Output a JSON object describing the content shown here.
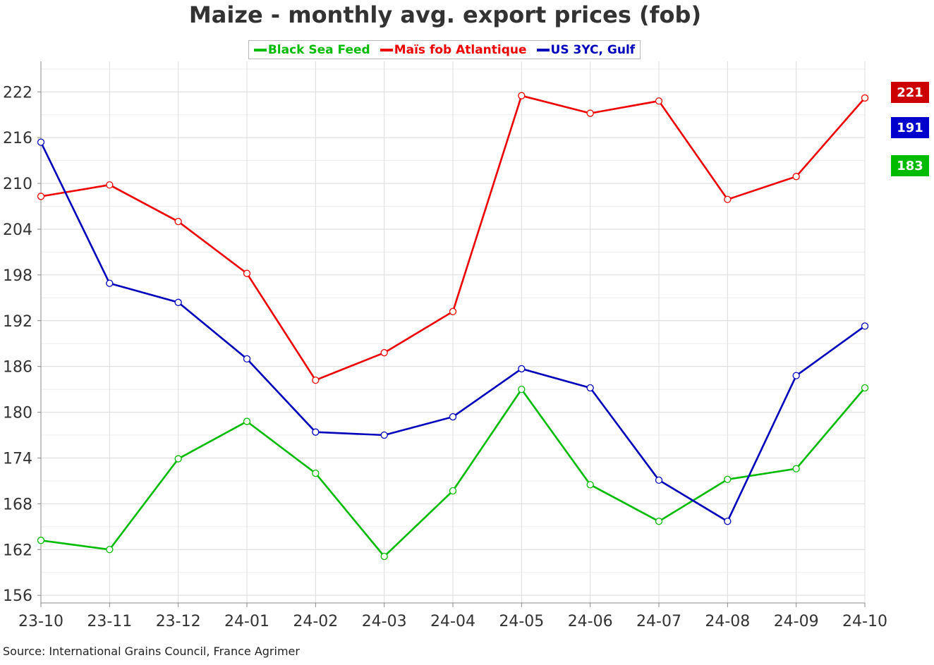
{
  "chart_data": {
    "type": "line",
    "title": "Maize - monthly avg. export prices (fob)",
    "xlabel": "",
    "ylabel": "",
    "categories": [
      "23-10",
      "23-11",
      "23-12",
      "24-01",
      "24-02",
      "24-03",
      "24-04",
      "24-05",
      "24-06",
      "24-07",
      "24-08",
      "24-09",
      "24-10"
    ],
    "ylim": [
      155,
      226
    ],
    "yticks": [
      156,
      162,
      168,
      174,
      180,
      186,
      192,
      198,
      204,
      210,
      216,
      222
    ],
    "grid": true,
    "legend_position": "top-center",
    "series": [
      {
        "name": "Black Sea Feed",
        "color": "#00bb00",
        "values": [
          163.2,
          162.0,
          173.9,
          178.8,
          172.0,
          161.1,
          169.7,
          183.0,
          170.5,
          165.7,
          171.2,
          172.6,
          183.2
        ]
      },
      {
        "name": "Maïs fob Atlantique",
        "color": "#ee0000",
        "values": [
          208.3,
          209.8,
          205.0,
          198.2,
          184.2,
          187.8,
          193.2,
          221.5,
          219.2,
          220.8,
          207.9,
          210.9,
          221.2
        ]
      },
      {
        "name": "US 3YC, Gulf",
        "color": "#0000bb",
        "values": [
          215.4,
          196.9,
          194.4,
          187.0,
          177.4,
          177.0,
          179.4,
          185.7,
          183.2,
          171.1,
          165.7,
          184.8,
          191.3
        ]
      }
    ],
    "end_labels": [
      {
        "text": "221",
        "color": "#cc0000"
      },
      {
        "text": "191",
        "color": "#0000cc"
      },
      {
        "text": "183",
        "color": "#00bb00"
      }
    ],
    "source": "Source: International Grains Council, France Agrimer"
  }
}
